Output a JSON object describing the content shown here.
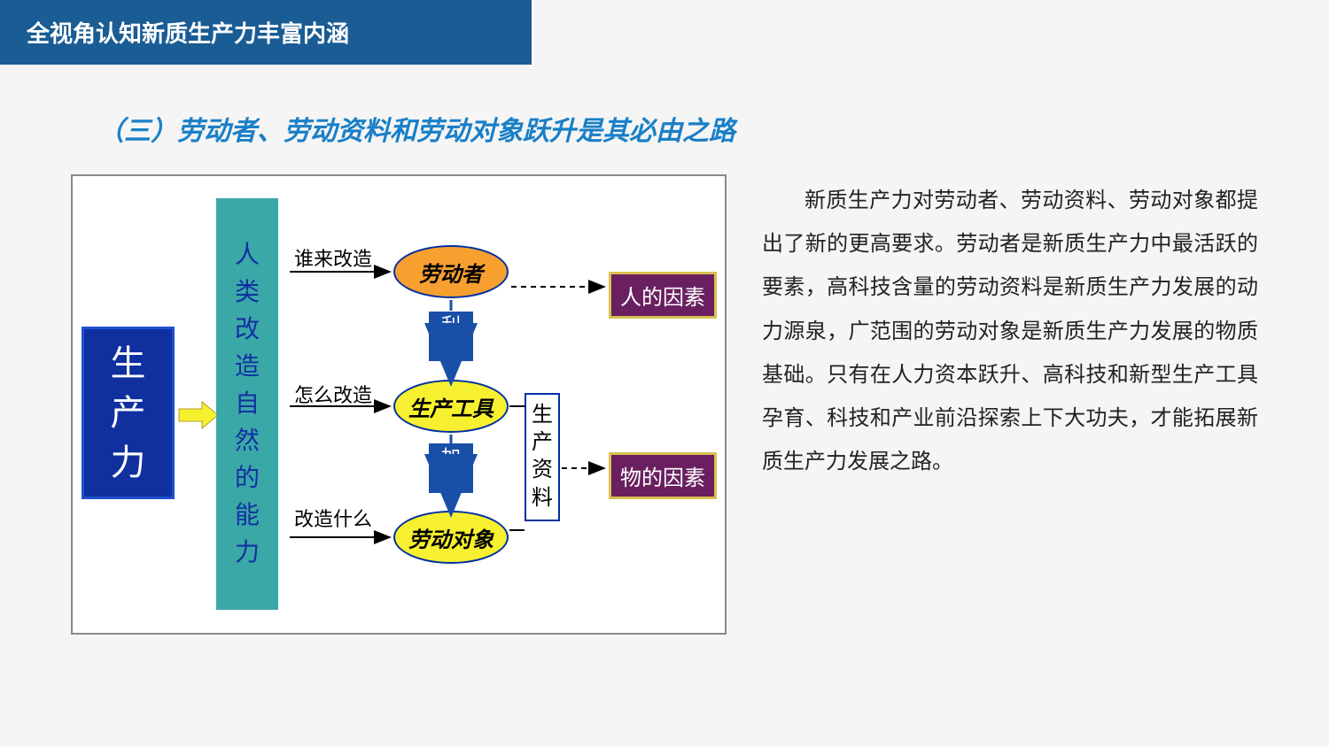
{
  "header": {
    "title": "全视角认知新质生产力丰富内涵"
  },
  "subtitle": "（三）劳动者、劳动资料和劳动对象跃升是其必由之路",
  "body": "新质生产力对劳动者、劳动资料、劳动对象都提出了新的更高要求。劳动者是新质生产力中最活跃的要素，高科技含量的劳动资料是新质生产力发展的动力源泉，广范围的劳动对象是新质生产力发展的物质基础。只有在人力资本跃升、高科技和新型生产工具孕育、科技和产业前沿探索上下大功夫，才能拓展新质生产力发展之路。",
  "diagram": {
    "leftBox": "生\n产\n力",
    "tealBox": "人\n类\n改\n造\n自\n然\n的\n能\n力",
    "q1": "谁来改造",
    "q2": "怎么改造",
    "q3": "改造什么",
    "ell1": "劳动者",
    "ell2": "生产工具",
    "ell3": "劳动对象",
    "down1": "利\n用",
    "down2": "加\n工",
    "sideVert": "生\n产\n资\n料",
    "purple1": "人的因素",
    "purple2": "物的因素",
    "colors": {
      "headerBg": "#1a5c94",
      "subtitle": "#1a7fc7",
      "blueBox": "#1030a0",
      "teal": "#3ba8a8",
      "orange": "#f7a030",
      "yellow": "#f7f030",
      "purple": "#6a2060",
      "darkBlue": "#1a4fa8"
    }
  }
}
